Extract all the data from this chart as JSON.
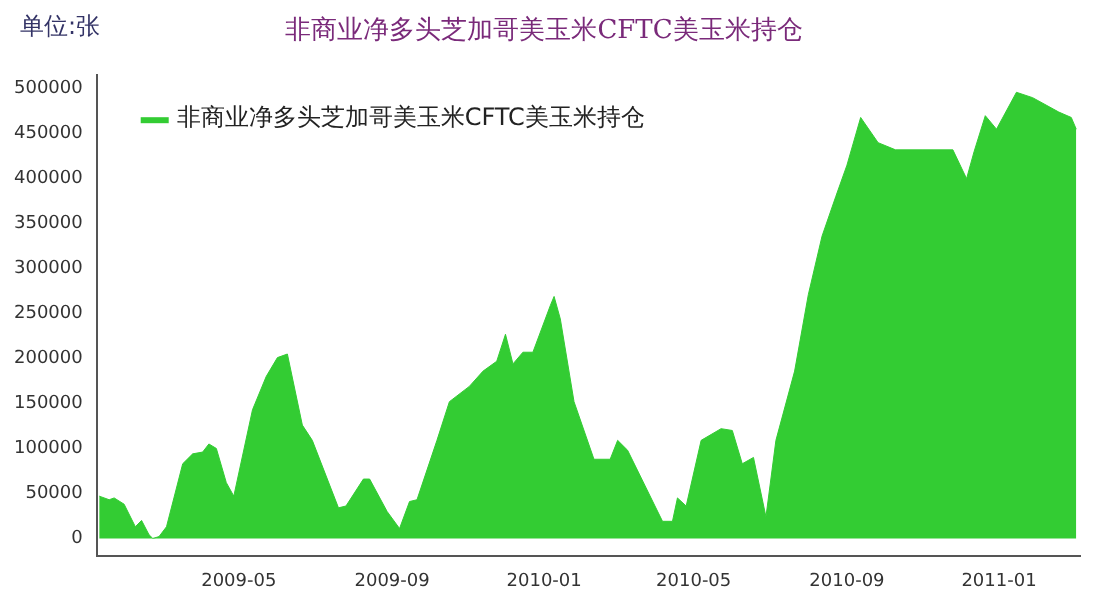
{
  "chart_data": {
    "type": "area",
    "title": "非商业净多头芝加哥美玉米CFTC美玉米持仓",
    "ylabel": "单位:张",
    "legend": "top left",
    "grid": false,
    "marker": "none",
    "xlim": [
      "2009-01-07",
      "2011-03-07"
    ],
    "xticks": [
      {
        "value": "2009-05",
        "label": "2009-05"
      },
      {
        "value": "2009-09",
        "label": "2009-09"
      },
      {
        "value": "2010-01",
        "label": "2010-01"
      },
      {
        "value": "2010-05",
        "label": "2010-05"
      },
      {
        "value": "2010-09",
        "label": "2010-09"
      },
      {
        "value": "2011-01",
        "label": "2011-01"
      }
    ],
    "ylim": [
      -20000,
      515000
    ],
    "yticks": [
      0,
      50000,
      100000,
      150000,
      200000,
      250000,
      300000,
      350000,
      400000,
      450000,
      500000
    ],
    "x": [
      "2009-01-09",
      "2009-01-17",
      "2009-01-21",
      "2009-01-29",
      "2009-02-07",
      "2009-02-12",
      "2009-02-18",
      "2009-02-21",
      "2009-02-26",
      "2009-03-04",
      "2009-03-17",
      "2009-03-25",
      "2009-04-02",
      "2009-04-07",
      "2009-04-13",
      "2009-04-21",
      "2009-04-27",
      "2009-05-12",
      "2009-05-23",
      "2009-06-01",
      "2009-06-09",
      "2009-06-21",
      "2009-06-29",
      "2009-07-20",
      "2009-07-26",
      "2009-08-09",
      "2009-08-14",
      "2009-08-28",
      "2009-09-07",
      "2009-09-15",
      "2009-09-21",
      "2009-10-07",
      "2009-10-17",
      "2009-11-02",
      "2009-11-13",
      "2009-11-24",
      "2009-12-01",
      "2009-12-07",
      "2009-12-15",
      "2009-12-23",
      "2010-01-06",
      "2010-01-09",
      "2010-01-14",
      "2010-01-25",
      "2010-02-10",
      "2010-02-23",
      "2010-03-01",
      "2010-03-09",
      "2010-04-06",
      "2010-04-14",
      "2010-04-18",
      "2010-04-25",
      "2010-05-07",
      "2010-05-23",
      "2010-06-01",
      "2010-06-09",
      "2010-06-18",
      "2010-06-28",
      "2010-07-06",
      "2010-07-21",
      "2010-08-01",
      "2010-08-12",
      "2010-08-23",
      "2010-09-01",
      "2010-09-12",
      "2010-09-26",
      "2010-10-10",
      "2010-11-01",
      "2010-11-25",
      "2010-12-06",
      "2010-12-12",
      "2010-12-21",
      "2010-12-30",
      "2011-01-15",
      "2011-01-28",
      "2011-02-18",
      "2011-02-28",
      "2011-03-04"
    ],
    "series": [
      {
        "name": "非商业净多头芝加哥美玉米CFTC美玉米持仓",
        "color": "#33cc33",
        "values": [
          47000,
          43000,
          45000,
          38000,
          13000,
          20000,
          4000,
          0,
          2000,
          13000,
          83000,
          94000,
          96000,
          105000,
          100000,
          62000,
          47000,
          143000,
          180000,
          201000,
          205000,
          126000,
          109000,
          34000,
          36000,
          66000,
          66000,
          30000,
          11000,
          41000,
          43000,
          109000,
          152000,
          169000,
          186000,
          197000,
          227000,
          194000,
          207000,
          207000,
          259000,
          269000,
          244000,
          152000,
          88000,
          88000,
          109000,
          98000,
          19000,
          19000,
          45000,
          36000,
          109000,
          122000,
          120000,
          83000,
          90000,
          24000,
          109000,
          186000,
          271000,
          336000,
          380000,
          415000,
          468000,
          440000,
          432000,
          432000,
          432000,
          400000,
          430000,
          470000,
          455000,
          496000,
          490000,
          474000,
          468000,
          455000
        ]
      }
    ]
  }
}
